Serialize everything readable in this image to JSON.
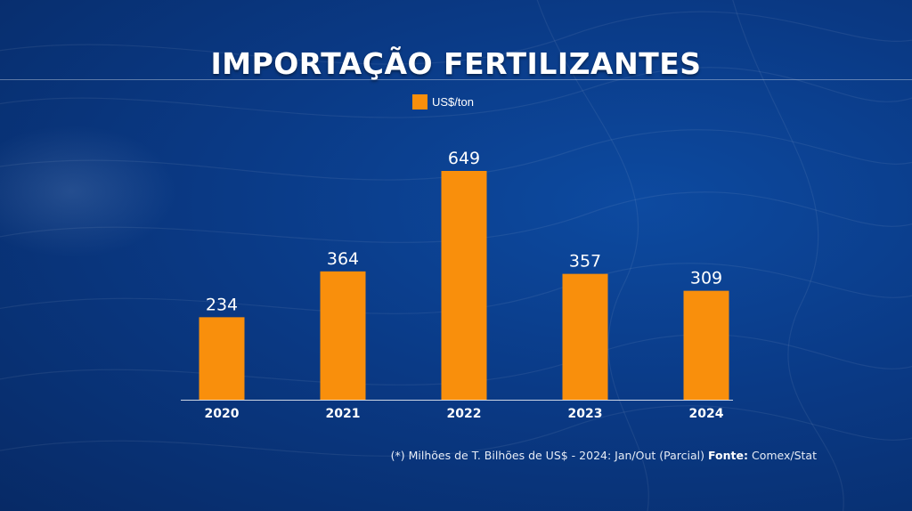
{
  "chart_data": {
    "type": "bar",
    "title": "IMPORTAÇÃO FERTILIZANTES",
    "legend": [
      "US$/ton"
    ],
    "categories": [
      "2020",
      "2021",
      "2022",
      "2023",
      "2024"
    ],
    "values": [
      234,
      364,
      649,
      357,
      309
    ],
    "ylim": [
      0,
      649
    ],
    "colors": {
      "bar": "#f98f0c",
      "axis": "#ffffff"
    }
  },
  "footer": {
    "note": "(*) Milhões de T. Bilhões de US$ - 2024: Jan/Out (Parcial)",
    "source_label": "Fonte:",
    "source_value": "Comex/Stat"
  }
}
